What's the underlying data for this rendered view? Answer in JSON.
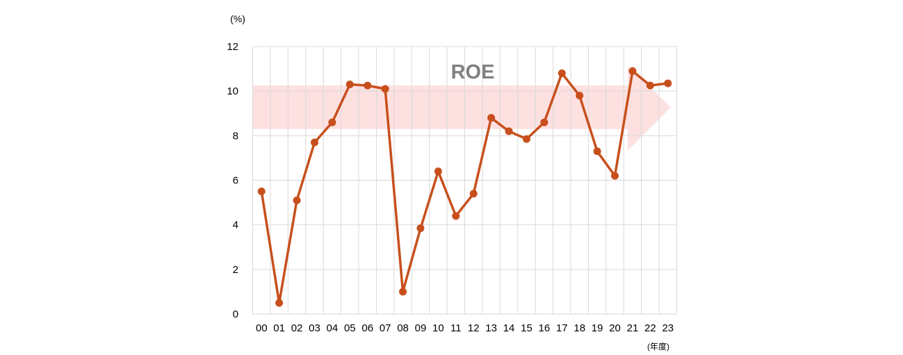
{
  "chart_data": {
    "type": "line",
    "y_unit": "(%)",
    "x_unit": "(年度)",
    "banner_label": "ROE",
    "categories": [
      "00",
      "01",
      "02",
      "03",
      "04",
      "05",
      "06",
      "07",
      "08",
      "09",
      "10",
      "11",
      "12",
      "13",
      "14",
      "15",
      "16",
      "17",
      "18",
      "19",
      "20",
      "21",
      "22",
      "23"
    ],
    "series": [
      {
        "values": [
          5.5,
          0.5,
          5.1,
          7.7,
          8.6,
          10.3,
          10.25,
          10.1,
          1.0,
          3.85,
          6.4,
          4.4,
          5.4,
          8.8,
          8.2,
          7.85,
          8.6,
          10.8,
          9.8,
          7.3,
          6.2,
          10.9,
          10.25,
          10.35
        ],
        "color": "#c84f1c"
      }
    ],
    "ylim": [
      0,
      12
    ],
    "yticks": [
      0,
      2,
      4,
      6,
      8,
      10,
      12
    ],
    "banner_range": [
      8.3,
      10.25
    ],
    "grid": true,
    "colors": {
      "line": "#c84f1c",
      "grid": "#d9d9d9",
      "banner": "#fde0e0"
    }
  }
}
